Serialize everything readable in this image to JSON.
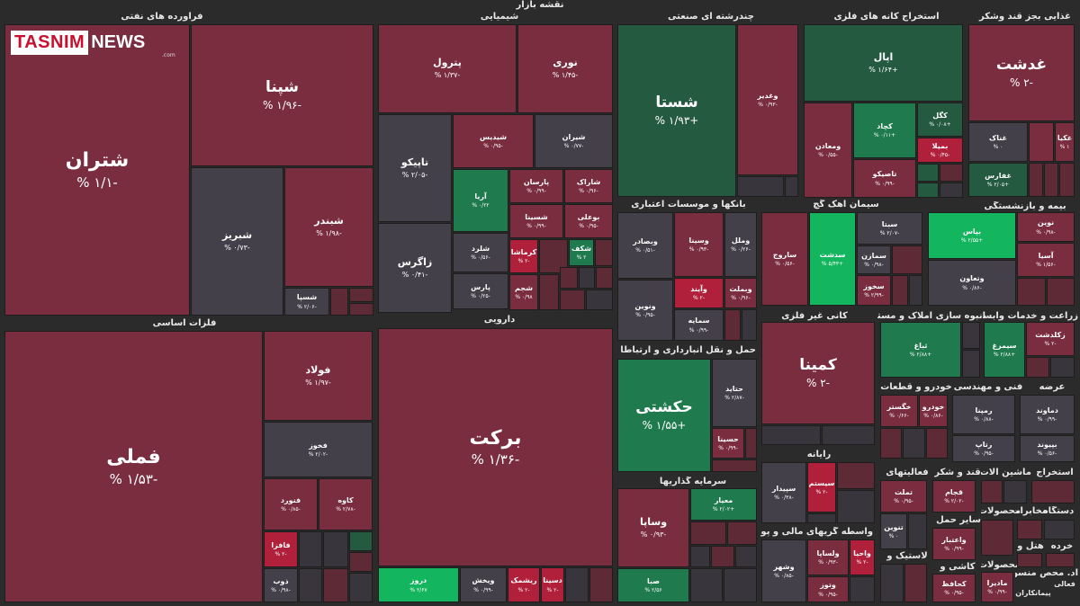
{
  "title": "نقشه بازار",
  "logo": {
    "brand": "TASNIM",
    "news": "NEWS",
    "suffix": ".com"
  },
  "sectors": {
    "oil": "فراورده های نفتی",
    "chemical": "شیمیایی",
    "multi": "چندرشته ای صنعتی",
    "mining": "استخراج کانه های فلزی",
    "food": "غذایی بجز قند وشکر",
    "basemetal": "فلزات اساسی",
    "pharma": "دارویی",
    "bank": "بانکها و موسسات اعتباری",
    "cement": "سیمان آهک گچ",
    "insurance": "بیمه و بازنشستگی",
    "transport": "حمل و نقل انبارداری و ارتباطات",
    "nonmetal": "کانی غیر فلزی",
    "realestate": "انبوه سازی املاک و مستغلات",
    "agri": "زراعت و خدمات وابسته",
    "auto": "خودرو و قطعات",
    "engineering": "فنی و مهندسی",
    "offering": "عرضه",
    "radio": "رایانه",
    "activity": "فعالیتهای",
    "sugar": "قند و شکر",
    "machinery": "ماشین آلات و",
    "extraction": "استخراج",
    "investment": "سرمایه گذاریها",
    "financial": "واسطه گریهای مالی و پولی",
    "device": "دستگاه",
    "comms": "مخابرات",
    "products": "محصولات",
    "other_mining": "سایر حمل و",
    "rubber": "لاستیک و",
    "paper": "کاشی و",
    "hotel": "هتل و",
    "retail": "خرده",
    "textile": "محصولات",
    "misc": "اد. محص منسوجا",
    "pcontract": "پیمانکاران",
    "fagali": "فعالی"
  },
  "tiles": {
    "shatran": {
      "name": "شتران",
      "pct": "% ۱/۱-"
    },
    "shapna": {
      "name": "شپنا",
      "pct": "% ۱/۹۶-"
    },
    "shabriz": {
      "name": "شبریز",
      "pct": "% ۰/۷۳-"
    },
    "shabandar": {
      "name": "شبندر",
      "pct": "% ۱/۹۸-"
    },
    "shasepa": {
      "name": "شسپا",
      "pct": "% ۲/۰۶-"
    },
    "petrol": {
      "name": "پترول",
      "pct": "% ۱/۳۷-"
    },
    "nouri": {
      "name": "نوری",
      "pct": "% ۱/۴۵-"
    },
    "tapiko": {
      "name": "تاپیکو",
      "pct": "% ۲/۰۵-"
    },
    "shidis": {
      "name": "شیدیس",
      "pct": "% ۰/۹۵-"
    },
    "shiran": {
      "name": "شیران",
      "pct": "% ۰/۷۷-"
    },
    "zagros": {
      "name": "زاگرس",
      "pct": "% ۰/۴۱-"
    },
    "arya": {
      "name": "آریا",
      "pct": "% ۰/۲۲"
    },
    "parsan": {
      "name": "پارسان",
      "pct": "% ۰/۹۹-"
    },
    "sharak": {
      "name": "شاراک",
      "pct": "% ۰/۹۶-"
    },
    "shesina": {
      "name": "شسینا",
      "pct": "% ۰/۹۹-"
    },
    "boali": {
      "name": "بوعلی",
      "pct": "% ۰/۹۵-"
    },
    "sharad": {
      "name": "شلرد",
      "pct": "% ۰/۵۶-"
    },
    "karmasha": {
      "name": "کرماشا",
      "pct": "% ۲-"
    },
    "shekaf": {
      "name": "شکف",
      "pct": "% ۲"
    },
    "pars": {
      "name": "پارس",
      "pct": "% ۰/۲۵-"
    },
    "shajam": {
      "name": "شجم",
      "pct": "% ۰/۹۸"
    },
    "shasta": {
      "name": "شستا",
      "pct": "% ۱/۹۳+"
    },
    "vaghadir": {
      "name": "وغدیر",
      "pct": "% ۰/۹۳-"
    },
    "apal": {
      "name": "اپال",
      "pct": "% ۱/۶۴+"
    },
    "vamaaden": {
      "name": "ومعادن",
      "pct": "% ۰/۵۵-"
    },
    "kechad": {
      "name": "کچاد",
      "pct": "% ۰/۱۱+"
    },
    "kegol": {
      "name": "کگل",
      "pct": "% ۰/۰۸+"
    },
    "bamila": {
      "name": "بمیلا",
      "pct": "% ۰/۴۵-"
    },
    "tasiko": {
      "name": "تاصیکو",
      "pct": "% ۰/۹۹-"
    },
    "ghadasht": {
      "name": "غدشت",
      "pct": "% ۲-"
    },
    "ghanak": {
      "name": "غناک",
      "pct": "% ۰"
    },
    "ghakia": {
      "name": "غکیا",
      "pct": "% ۱"
    },
    "ghalfars": {
      "name": "غفارس",
      "pct": "% ۲/۰۵+"
    },
    "famli": {
      "name": "فملی",
      "pct": "% ۱/۵۳-"
    },
    "foolad": {
      "name": "فولاد",
      "pct": "% ۱/۹۷-"
    },
    "fakhooz": {
      "name": "فخوز",
      "pct": "% ۲/۰۲-"
    },
    "kave": {
      "name": "کاوه",
      "pct": "% ۲/۷۸-"
    },
    "fanoord": {
      "name": "فنورد",
      "pct": "% ۰/۸۵-"
    },
    "fafaza": {
      "name": "فافزا",
      "pct": "% ۲-"
    },
    "zob": {
      "name": "ذوب",
      "pct": "% ۰/۹۸-"
    },
    "barkat": {
      "name": "برکت",
      "pct": "% ۱/۳۶-"
    },
    "darooz": {
      "name": "دروز",
      "pct": "% ۲/۶۷"
    },
    "vikhesh": {
      "name": "ویخش",
      "pct": "% ۰/۹۹-"
    },
    "rishmak": {
      "name": "ریشمک",
      "pct": "% ۲-"
    },
    "desina": {
      "name": "دسینا",
      "pct": "% ۲-"
    },
    "vabsadar": {
      "name": "وبصادر",
      "pct": "% ۰/۵۱-"
    },
    "vasina": {
      "name": "وسینا",
      "pct": "% ۰/۹۳-"
    },
    "vamelal": {
      "name": "وملل",
      "pct": "% ۰/۲۶-"
    },
    "vayand": {
      "name": "وآیند",
      "pct": "% ۲-"
    },
    "vaemlat": {
      "name": "وبملت",
      "pct": "% ۰/۹۶-"
    },
    "vanovin": {
      "name": "ونوین",
      "pct": "% ۰/۹۵-"
    },
    "samaye": {
      "name": "سمایه",
      "pct": "% ۰/۹۹-"
    },
    "saroj": {
      "name": "ساروج",
      "pct": "% ۰/۵۶-"
    },
    "sadasht": {
      "name": "سدشت",
      "pct": "% ۵/۴۳+"
    },
    "sabta": {
      "name": "سبتا",
      "pct": "% ۲/۰۷-"
    },
    "semazan": {
      "name": "سمازن",
      "pct": "% ۰/۹۸-"
    },
    "sakhooz": {
      "name": "سخوز",
      "pct": "% ۲/۹۹-"
    },
    "bapas": {
      "name": "بپاس",
      "pct": "% ۲/۵۵+"
    },
    "noin": {
      "name": "نوین",
      "pct": "% ۰/۹۸-"
    },
    "asia": {
      "name": "آسیا",
      "pct": "% ۱/۵۶-"
    },
    "vataavon": {
      "name": "وتعاون",
      "pct": "% ۰/۸۶-"
    },
    "hakeshti": {
      "name": "حکشتی",
      "pct": "% ۱/۵۵+"
    },
    "hatid": {
      "name": "حتاید",
      "pct": "% ۲/۸۷-"
    },
    "hasina": {
      "name": "حسینا",
      "pct": "% ۰/۹۹-"
    },
    "kamina": {
      "name": "کمینا",
      "pct": "% ۲-"
    },
    "sabagh": {
      "name": "ثباغ",
      "pct": "% ۲/۸۸+"
    },
    "simorgh": {
      "name": "سیمرغ",
      "pct": "% ۲/۸۸+"
    },
    "zagalasht": {
      "name": "زکلدشت",
      "pct": "% ۲-"
    },
    "khaghestar": {
      "name": "خگستر",
      "pct": "% ۰/۶۶-"
    },
    "khodro": {
      "name": "خودرو",
      "pct": "% ۰/۸۶-"
    },
    "rampna": {
      "name": "رمپنا",
      "pct": "% ۰/۸۸-"
    },
    "damavand": {
      "name": "دماوند",
      "pct": "% ۰/۹۹-"
    },
    "ratak": {
      "name": "رتاپ",
      "pct": "% ۰/۹۵-"
    },
    "bipand": {
      "name": "بپیوند",
      "pct": "% ۰/۵۶-"
    },
    "sepidar": {
      "name": "سپیدار",
      "pct": "% ۰/۳۸-"
    },
    "sistem": {
      "name": "سیستم",
      "pct": "% ۲-"
    },
    "vasapa": {
      "name": "وساپا",
      "pct": "% ۰/۹۳-"
    },
    "moyar": {
      "name": "معیار",
      "pct": "% ۲/۰۲+"
    },
    "saba": {
      "name": "صبا",
      "pct": "% ۲/۵۶"
    },
    "vashahr": {
      "name": "وشهر",
      "pct": "% ۰/۸۵-"
    },
    "valsapa": {
      "name": "ولساپا",
      "pct": "% ۰/۹۳-"
    },
    "vahabi": {
      "name": "واحیا",
      "pct": "% ۲-"
    },
    "vatooz": {
      "name": "وتوز",
      "pct": "% ۰/۹۵-"
    },
    "tamlat": {
      "name": "تملت",
      "pct": "% ۰/۹۵-"
    },
    "ghajar": {
      "name": "قجام",
      "pct": "% ۲/۰۲-"
    },
    "tanvin": {
      "name": "تنوین",
      "pct": "% ۰"
    },
    "veatebar": {
      "name": "واعتبار",
      "pct": "% ۰/۹۹-"
    },
    "kahafez": {
      "name": "کحافظ",
      "pct": "% ۰/۹۵-"
    },
    "madira": {
      "name": "مادیرا",
      "pct": "% ۰/۹۹-"
    }
  }
}
